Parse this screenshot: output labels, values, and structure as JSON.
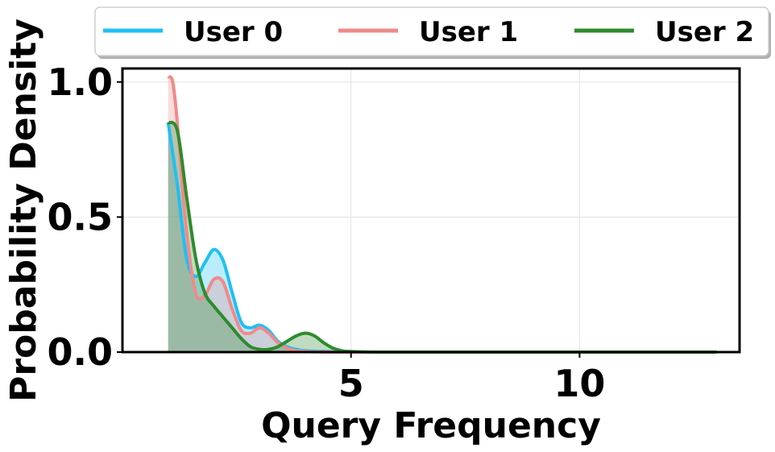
{
  "chart_data": {
    "type": "area",
    "title": "",
    "xlabel": "Query Frequency",
    "ylabel": "Probability Density",
    "xlim": [
      0,
      13.5
    ],
    "ylim": [
      0,
      1.05
    ],
    "xticks": [
      5,
      10
    ],
    "yticks": [
      0.0,
      0.5,
      1.0
    ],
    "xtick_labels": [
      "5",
      "10"
    ],
    "ytick_labels": [
      "0.0",
      "0.5",
      "1.0"
    ],
    "grid": true,
    "legend_position": "top, above plot",
    "series": [
      {
        "name": "User 0",
        "color": "#1ec0f5",
        "fill_opacity": 0.3,
        "x": [
          1.0,
          1.2,
          1.4,
          1.6,
          1.8,
          2.0,
          2.2,
          2.4,
          2.6,
          2.8,
          3.0,
          3.2,
          3.4,
          3.6,
          3.8,
          4.0,
          4.5,
          5.0,
          6.0,
          8.0,
          10.0,
          12.0,
          13.0
        ],
        "y": [
          0.85,
          0.62,
          0.35,
          0.28,
          0.33,
          0.38,
          0.34,
          0.22,
          0.11,
          0.09,
          0.1,
          0.08,
          0.04,
          0.02,
          0.01,
          0.005,
          0.002,
          0.0,
          0.0,
          0.0,
          0.0,
          0.0,
          0.0
        ]
      },
      {
        "name": "User 1",
        "color": "#f08a8a",
        "fill_opacity": 0.3,
        "x": [
          1.0,
          1.1,
          1.2,
          1.4,
          1.6,
          1.8,
          2.0,
          2.2,
          2.4,
          2.6,
          2.8,
          3.0,
          3.2,
          3.4,
          3.6,
          3.8,
          4.0,
          4.5,
          5.0,
          6.0,
          8.0,
          10.0,
          12.0,
          13.0
        ],
        "y": [
          1.02,
          1.0,
          0.85,
          0.45,
          0.22,
          0.21,
          0.27,
          0.26,
          0.16,
          0.08,
          0.07,
          0.09,
          0.07,
          0.035,
          0.015,
          0.005,
          0.002,
          0.0,
          0.0,
          0.0,
          0.0,
          0.0,
          0.0,
          0.0
        ]
      },
      {
        "name": "User 2",
        "color": "#2e8b2e",
        "fill_opacity": 0.3,
        "x": [
          1.0,
          1.2,
          1.4,
          1.6,
          1.8,
          2.0,
          2.2,
          2.4,
          2.6,
          2.8,
          3.0,
          3.2,
          3.4,
          3.6,
          3.8,
          4.0,
          4.2,
          4.4,
          4.6,
          4.8,
          5.0,
          5.5,
          6.0,
          8.0,
          10.0,
          12.0,
          13.0
        ],
        "y": [
          0.85,
          0.82,
          0.58,
          0.35,
          0.22,
          0.17,
          0.13,
          0.09,
          0.05,
          0.02,
          0.01,
          0.01,
          0.02,
          0.04,
          0.06,
          0.07,
          0.06,
          0.035,
          0.015,
          0.005,
          0.002,
          0.0,
          0.0,
          0.0,
          0.0,
          0.0,
          0.0
        ]
      }
    ]
  }
}
